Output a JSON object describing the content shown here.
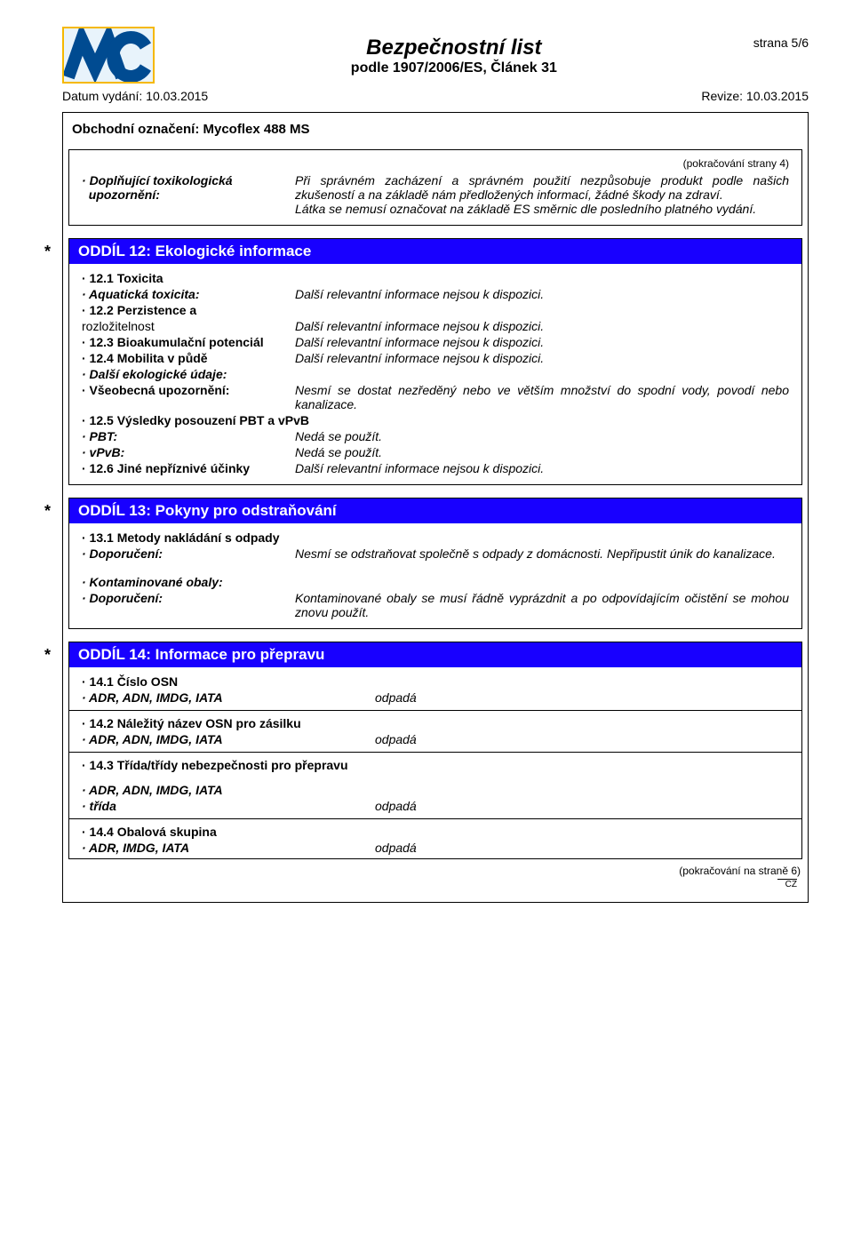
{
  "page": {
    "strana": "strana 5/6",
    "title": "Bezpečnostní list",
    "subtitle": "podle 1907/2006/ES, Článek 31",
    "datum": "Datum vydání: 10.03.2015",
    "revize": "Revize: 10.03.2015",
    "product_label": "Obchodní označení: Mycoflex 488 MS",
    "cont_from": "(pokračování  strany 4)",
    "cont_to": "(pokračování na straně 6)",
    "country": "CZ"
  },
  "logo": {
    "text": "MC",
    "border_color": "#f5b800",
    "bg_color": "#e8f3fb"
  },
  "tox": {
    "label_prefix": "· ",
    "label1": "Doplňující toxikologická",
    "label2": "upozornění:",
    "value": "Při správném zacházení a správném použití nezpůsobuje produkt podle našich zkušeností a na základě nám předložených informací, žádné škody na zdraví.",
    "value2": "Látka se nemusí označovat na základě ES směrnic dle posledního platného vydání."
  },
  "s12": {
    "title": "ODDÍL 12: Ekologické informace",
    "rows": [
      {
        "label": "· 12.1 Toxicita",
        "value": ""
      },
      {
        "label": "· Aquatická toxicita:",
        "value": "Další relevantní informace nejsou k dispozici."
      },
      {
        "label": "· 12.2 Perzistence a",
        "value": ""
      },
      {
        "label": "  rozložitelnost",
        "value": "Další relevantní informace nejsou k dispozici."
      },
      {
        "label": "· 12.3 Bioakumulační potenciál",
        "value": "Další relevantní informace nejsou k dispozici."
      },
      {
        "label": "· 12.4 Mobilita v půdě",
        "value": "Další relevantní informace nejsou k dispozici."
      },
      {
        "label": "· Další ekologické údaje:",
        "value": ""
      },
      {
        "label": "· Všeobecná upozornění:",
        "value": "Nesmí se dostat nezředěný nebo ve větším množství do spodní vody, povodí nebo kanalizace."
      },
      {
        "label": "· 12.5 Výsledky posouzení PBT a vPvB",
        "value": ""
      },
      {
        "label": "· PBT:",
        "value": "Nedá se použít."
      },
      {
        "label": "· vPvB:",
        "value": "Nedá se použít."
      },
      {
        "label": "· 12.6 Jiné nepříznivé účinky",
        "value": "Další relevantní informace nejsou k dispozici."
      }
    ],
    "bold_idx": [
      0,
      2,
      4,
      5,
      7,
      8,
      11
    ],
    "bi_idx": [
      1,
      6,
      9,
      10
    ],
    "plain_idx": [
      3
    ]
  },
  "s13": {
    "title": "ODDÍL 13: Pokyny pro odstraňování",
    "r1_label": "· 13.1 Metody nakládání s odpady",
    "r2_label": "· Doporučení:",
    "r2_value": "Nesmí se odstraňovat společně s odpady z domácnosti. Nepřipustit únik do kanalizace.",
    "r3_label": "· Kontaminované obaly:",
    "r4_label": "· Doporučení:",
    "r4_value": "Kontaminované obaly se musí řádně vyprázdnit a po odpovídajícím očistění se mohou znovu použít."
  },
  "s14": {
    "title": "ODDÍL 14: Informace pro přepravu",
    "blocks": [
      {
        "rows": [
          {
            "label": "· 14.1 Číslo OSN",
            "value": "",
            "bold": true
          },
          {
            "label": "· ADR, ADN, IMDG, IATA",
            "value": "odpadá",
            "bi": true
          }
        ]
      },
      {
        "rows": [
          {
            "label": "· 14.2 Náležitý název OSN pro zásilku",
            "value": "",
            "bold": true
          },
          {
            "label": "· ADR, ADN, IMDG, IATA",
            "value": "odpadá",
            "bi": true
          }
        ]
      },
      {
        "rows": [
          {
            "label": "· 14.3 Třída/třídy nebezpečnosti pro přepravu",
            "value": "",
            "bold": true
          },
          {
            "label": "",
            "value": "",
            "spacer": true
          },
          {
            "label": "· ADR, ADN, IMDG, IATA",
            "value": "",
            "bi": true
          },
          {
            "label": "· třída",
            "value": "odpadá",
            "bi": true
          }
        ]
      },
      {
        "rows": [
          {
            "label": "· 14.4 Obalová skupina",
            "value": "",
            "bold": true
          },
          {
            "label": "· ADR, IMDG, IATA",
            "value": "odpadá",
            "bi": true
          }
        ]
      }
    ]
  },
  "colors": {
    "section_bg": "#1800ff",
    "section_fg": "#ffffff"
  }
}
